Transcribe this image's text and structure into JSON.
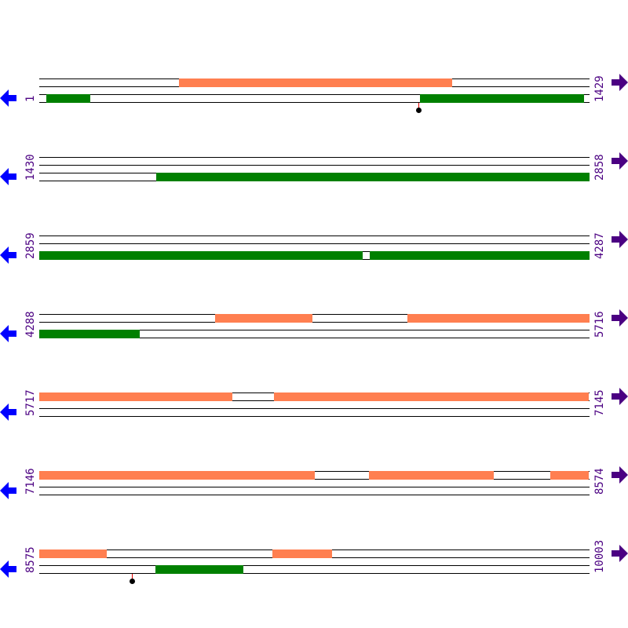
{
  "sequence_length": 10003,
  "bases_per_row": 1429,
  "colors": {
    "track1": "#ff7f50",
    "track2": "#008000",
    "label": "#4b0082",
    "left_arrow": "#0000ff",
    "right_arrow": "#4b0082",
    "marker_stem": "#e00000"
  },
  "icons": {
    "left": "arrow-left-icon",
    "right": "arrow-right-icon"
  },
  "rows": [
    {
      "start_label": "1",
      "end_label": "1429",
      "start": 1,
      "end": 1429,
      "track1": [
        [
          364,
          1072
        ]
      ],
      "track2": [
        [
          19,
          131
        ],
        [
          991,
          1415
        ]
      ],
      "markers": [
        987
      ]
    },
    {
      "start_label": "1430",
      "end_label": "2858",
      "start": 1430,
      "end": 2858,
      "track1": [],
      "track2": [
        [
          1734,
          2858
        ]
      ],
      "markers": []
    },
    {
      "start_label": "2859",
      "end_label": "4287",
      "start": 2859,
      "end": 4287,
      "track1": [],
      "track2": [
        [
          2859,
          3698
        ],
        [
          3718,
          4287
        ]
      ],
      "markers": []
    },
    {
      "start_label": "4288",
      "end_label": "5716",
      "start": 4288,
      "end": 5716,
      "track1": [
        [
          4745,
          4996
        ],
        [
          5245,
          5716
        ]
      ],
      "track2": [
        [
          4288,
          4547
        ]
      ],
      "markers": []
    },
    {
      "start_label": "5717",
      "end_label": "7145",
      "start": 5717,
      "end": 7145,
      "track1": [
        [
          5717,
          6217
        ],
        [
          6327,
          7145
        ]
      ],
      "track2": [],
      "markers": []
    },
    {
      "start_label": "7146",
      "end_label": "8574",
      "start": 7146,
      "end": 8574,
      "track1": [
        [
          7146,
          7860
        ],
        [
          8003,
          8326
        ],
        [
          8475,
          8574
        ]
      ],
      "track2": [],
      "markers": []
    },
    {
      "start_label": "8575",
      "end_label": "10003",
      "start": 8575,
      "end": 10003,
      "track1": [
        [
          8575,
          8748
        ],
        [
          9181,
          9334
        ]
      ],
      "track2": [
        [
          8877,
          9104
        ]
      ],
      "markers": [
        8816
      ]
    }
  ]
}
